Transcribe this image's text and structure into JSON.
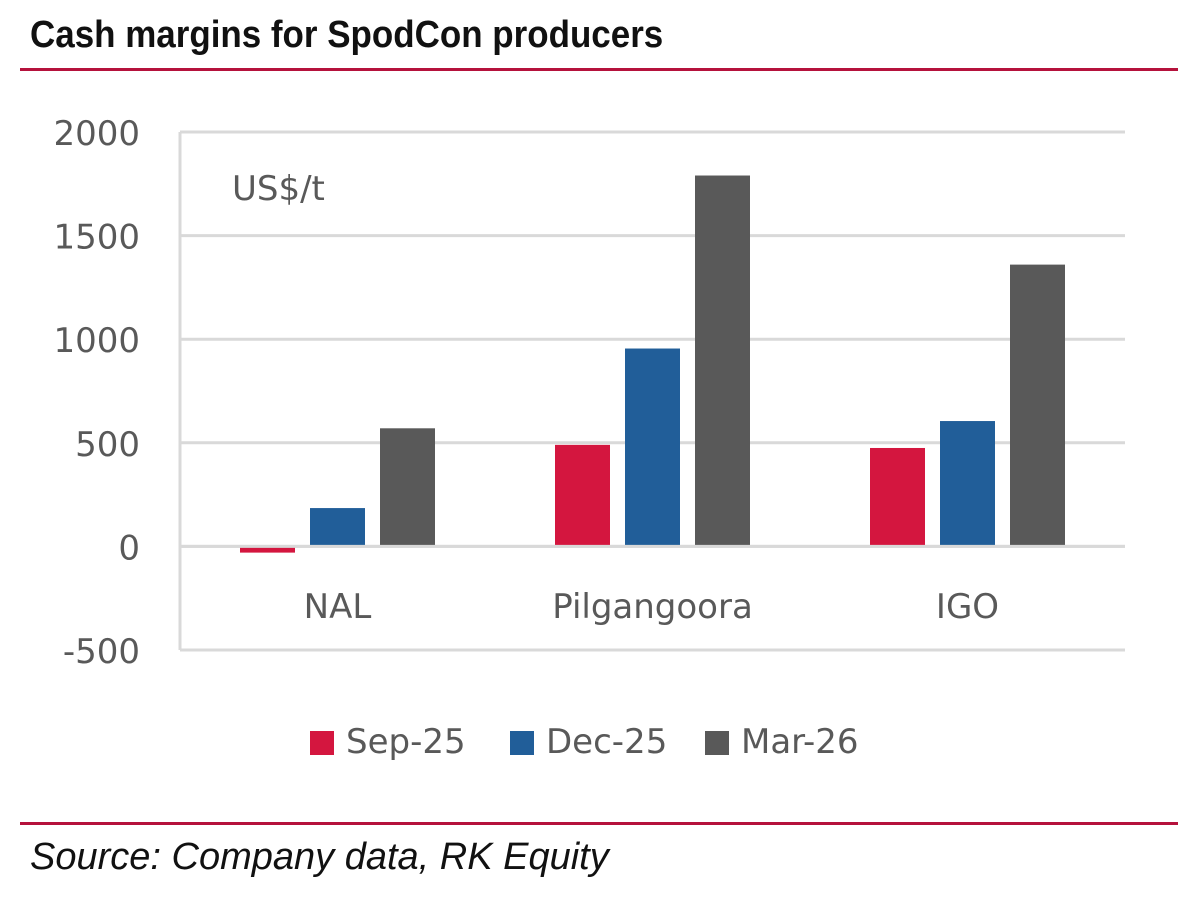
{
  "title": "Cash margins for SpodCon producers",
  "source": "Source: Company data, RK Equity",
  "chart_data": {
    "type": "bar",
    "title": "Cash margins for SpodCon producers",
    "unit_label": "US$/t",
    "categories": [
      "NAL",
      "Pilgangoora",
      "IGO"
    ],
    "series": [
      {
        "name": "Sep-25",
        "color": "#d4163f",
        "values": [
          -30,
          490,
          475
        ]
      },
      {
        "name": "Dec-25",
        "color": "#215e99",
        "values": [
          185,
          955,
          605
        ]
      },
      {
        "name": "Mar-26",
        "color": "#595959",
        "values": [
          570,
          1790,
          1360
        ]
      }
    ],
    "ylim": [
      -500,
      2000
    ],
    "yticks": [
      -500,
      0,
      500,
      1000,
      1500,
      2000
    ],
    "ytick_labels": [
      "-500",
      "0",
      "500",
      "1000",
      "1500",
      "2000"
    ],
    "xlabel": "",
    "ylabel": "",
    "grid": true,
    "legend_position": "bottom"
  }
}
